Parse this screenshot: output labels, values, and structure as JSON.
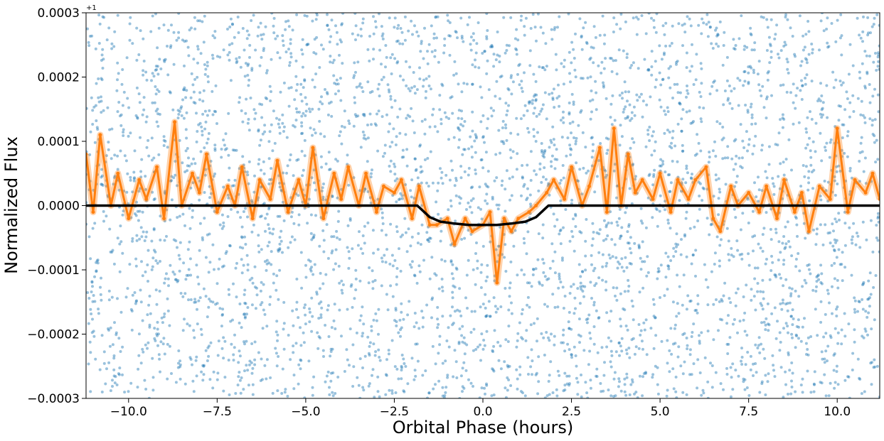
{
  "chart_data": {
    "type": "scatter",
    "xlabel": "Orbital Phase (hours)",
    "ylabel": "Normalized Flux",
    "y_offset_label": "+1",
    "xlim": [
      -11.2,
      11.2
    ],
    "ylim": [
      -0.0003,
      0.0003
    ],
    "x_ticks": [
      -10.0,
      -7.5,
      -5.0,
      -2.5,
      0.0,
      2.5,
      5.0,
      7.5,
      10.0
    ],
    "x_tick_labels": [
      "−10.0",
      "−7.5",
      "−5.0",
      "−2.5",
      "0.0",
      "2.5",
      "5.0",
      "7.5",
      "10.0"
    ],
    "y_ticks": [
      -0.0003,
      -0.0002,
      -0.0001,
      0.0,
      0.0001,
      0.0002,
      0.0003
    ],
    "y_tick_labels": [
      "−0.0003",
      "−0.0002",
      "−0.0001",
      "0.0000",
      "0.0001",
      "0.0002",
      "0.0003"
    ],
    "grid": false,
    "colors": {
      "raw": "#1f77b4",
      "binned": "#ff7f0e",
      "model": "#000000"
    },
    "series": [
      {
        "kind": "scatter",
        "role": "raw",
        "color": "#1f77b4",
        "description_points": "dense uniform scatter spanning the full y range across all phases"
      },
      {
        "kind": "line",
        "role": "binned",
        "color": "#ff7f0e",
        "x": [
          -11.2,
          -11.0,
          -10.8,
          -10.5,
          -10.3,
          -10.0,
          -9.7,
          -9.5,
          -9.2,
          -9.0,
          -8.7,
          -8.5,
          -8.2,
          -8.0,
          -7.8,
          -7.5,
          -7.2,
          -7.0,
          -6.8,
          -6.5,
          -6.3,
          -6.0,
          -5.8,
          -5.5,
          -5.2,
          -5.0,
          -4.8,
          -4.5,
          -4.2,
          -4.0,
          -3.8,
          -3.5,
          -3.3,
          -3.0,
          -2.8,
          -2.5,
          -2.3,
          -2.0,
          -1.8,
          -1.5,
          -1.3,
          -1.0,
          -0.8,
          -0.5,
          -0.3,
          0.0,
          0.2,
          0.4,
          0.6,
          0.8,
          1.0,
          1.3,
          1.5,
          1.8,
          2.0,
          2.3,
          2.5,
          2.8,
          3.0,
          3.3,
          3.5,
          3.7,
          3.9,
          4.1,
          4.3,
          4.5,
          4.8,
          5.0,
          5.3,
          5.5,
          5.8,
          6.0,
          6.3,
          6.5,
          6.7,
          7.0,
          7.2,
          7.5,
          7.8,
          8.0,
          8.3,
          8.5,
          8.8,
          9.0,
          9.2,
          9.5,
          9.8,
          10.0,
          10.3,
          10.5,
          10.8,
          11.0,
          11.2
        ],
        "y": [
          8e-05,
          -1e-05,
          0.00011,
          0.0,
          5e-05,
          -2e-05,
          4e-05,
          1e-05,
          6e-05,
          -2e-05,
          0.00013,
          0.0,
          5e-05,
          2e-05,
          8e-05,
          -1e-05,
          3e-05,
          0.0,
          6e-05,
          -2e-05,
          4e-05,
          1e-05,
          7e-05,
          -1e-05,
          4e-05,
          0.0,
          9e-05,
          -2e-05,
          5e-05,
          1e-05,
          6e-05,
          0.0,
          5e-05,
          -1e-05,
          3e-05,
          2e-05,
          4e-05,
          -2e-05,
          3e-05,
          -3e-05,
          -3e-05,
          -2e-05,
          -6e-05,
          -2e-05,
          -4e-05,
          -3e-05,
          -1e-05,
          -0.00012,
          -2e-05,
          -4e-05,
          -2e-05,
          -1e-05,
          0.0,
          2e-05,
          4e-05,
          1e-05,
          6e-05,
          0.0,
          3e-05,
          9e-05,
          -1e-05,
          0.00012,
          0.0,
          8e-05,
          2e-05,
          4e-05,
          1e-05,
          5e-05,
          -1e-05,
          4e-05,
          1e-05,
          4e-05,
          6e-05,
          -2e-05,
          -4e-05,
          3e-05,
          0.0,
          2e-05,
          -1e-05,
          3e-05,
          -2e-05,
          4e-05,
          -1e-05,
          2e-05,
          -4e-05,
          3e-05,
          1e-05,
          0.00012,
          -1e-05,
          4e-05,
          2e-05,
          5e-05,
          1e-05
        ]
      },
      {
        "kind": "line",
        "role": "model",
        "color": "#000000",
        "x": [
          -11.2,
          -1.85,
          -1.5,
          -1.2,
          -0.8,
          -0.4,
          0.0,
          0.4,
          0.8,
          1.2,
          1.5,
          1.85,
          11.2
        ],
        "y": [
          0.0,
          0.0,
          -1.8e-05,
          -2.5e-05,
          -2.8e-05,
          -3e-05,
          -3e-05,
          -3e-05,
          -2.8e-05,
          -2.5e-05,
          -1.8e-05,
          0.0,
          0.0
        ]
      }
    ]
  }
}
